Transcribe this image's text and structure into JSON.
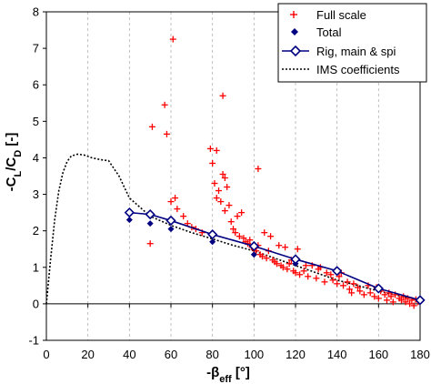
{
  "chart_data": {
    "type": "scatter",
    "xlabel": {
      "main": "-β",
      "sub": "eff",
      "unit": " [°]"
    },
    "ylabel": {
      "main": "-C",
      "sub1": "L",
      "mid": "/C",
      "sub2": "D",
      "unit": " [-]"
    },
    "xlim": [
      0,
      180
    ],
    "ylim": [
      -1,
      8
    ],
    "x_ticks": [
      0,
      20,
      40,
      60,
      80,
      100,
      120,
      140,
      160,
      180
    ],
    "y_ticks": [
      -1,
      0,
      1,
      2,
      3,
      4,
      5,
      6,
      7,
      8
    ],
    "grid": "vertical-dashed",
    "legend_position": "top-right",
    "colors": {
      "full_scale": "#ff0000",
      "total": "#000080",
      "rig": "#000080",
      "ims": "#000000"
    },
    "series": [
      {
        "name": "Full scale",
        "marker": "plus",
        "points": [
          [
            50,
            1.65
          ],
          [
            51,
            4.85
          ],
          [
            57,
            5.45
          ],
          [
            58,
            4.65
          ],
          [
            60,
            2.8
          ],
          [
            61,
            7.25
          ],
          [
            62,
            2.9
          ],
          [
            63,
            2.6
          ],
          [
            66,
            2.4
          ],
          [
            68,
            2.2
          ],
          [
            70,
            2.1
          ],
          [
            72,
            2.05
          ],
          [
            75,
            1.95
          ],
          [
            79,
            4.25
          ],
          [
            80,
            3.85
          ],
          [
            81,
            3.3
          ],
          [
            82,
            4.2
          ],
          [
            82,
            2.9
          ],
          [
            83,
            3.1
          ],
          [
            84,
            2.8
          ],
          [
            85,
            5.7
          ],
          [
            85,
            3.55
          ],
          [
            86,
            3.45
          ],
          [
            86,
            2.55
          ],
          [
            87,
            3.2
          ],
          [
            88,
            2.7
          ],
          [
            89,
            2.25
          ],
          [
            90,
            2.05
          ],
          [
            91,
            1.95
          ],
          [
            92,
            2.4
          ],
          [
            93,
            1.85
          ],
          [
            94,
            2.5
          ],
          [
            95,
            1.8
          ],
          [
            96,
            1.7
          ],
          [
            97,
            1.65
          ],
          [
            98,
            1.75
          ],
          [
            99,
            1.55
          ],
          [
            100,
            1.5
          ],
          [
            101,
            1.45
          ],
          [
            102,
            3.7
          ],
          [
            102,
            1.6
          ],
          [
            103,
            1.35
          ],
          [
            104,
            1.3
          ],
          [
            105,
            1.95
          ],
          [
            106,
            1.25
          ],
          [
            107,
            1.45
          ],
          [
            108,
            1.85
          ],
          [
            109,
            1.2
          ],
          [
            110,
            1.15
          ],
          [
            111,
            1.1
          ],
          [
            112,
            1.6
          ],
          [
            113,
            1.05
          ],
          [
            114,
            1.0
          ],
          [
            115,
            1.55
          ],
          [
            116,
            0.95
          ],
          [
            117,
            1.1
          ],
          [
            118,
            1.2
          ],
          [
            119,
            0.9
          ],
          [
            120,
            0.85
          ],
          [
            121,
            1.5
          ],
          [
            122,
            0.8
          ],
          [
            124,
            0.9
          ],
          [
            125,
            1.05
          ],
          [
            126,
            0.75
          ],
          [
            128,
            1.05
          ],
          [
            130,
            0.7
          ],
          [
            131,
            0.95
          ],
          [
            132,
            1.0
          ],
          [
            134,
            0.6
          ],
          [
            135,
            0.85
          ],
          [
            137,
            0.8
          ],
          [
            138,
            0.65
          ],
          [
            140,
            0.55
          ],
          [
            141,
            0.75
          ],
          [
            142,
            0.85
          ],
          [
            143,
            0.5
          ],
          [
            145,
            0.6
          ],
          [
            146,
            0.4
          ],
          [
            147,
            0.3
          ],
          [
            148,
            0.55
          ],
          [
            150,
            0.45
          ],
          [
            151,
            0.35
          ],
          [
            153,
            0.25
          ],
          [
            155,
            0.5
          ],
          [
            156,
            0.3
          ],
          [
            158,
            0.2
          ],
          [
            159,
            0.45
          ],
          [
            160,
            0.15
          ],
          [
            161,
            0.35
          ],
          [
            163,
            0.25
          ],
          [
            164,
            0.1
          ],
          [
            165,
            0.3
          ],
          [
            166,
            0.2
          ],
          [
            167,
            0.05
          ],
          [
            168,
            0.25
          ],
          [
            170,
            0.15
          ],
          [
            171,
            0.1
          ],
          [
            172,
            0.2
          ],
          [
            173,
            0.05
          ],
          [
            174,
            0.15
          ],
          [
            175,
            0.0
          ],
          [
            176,
            0.1
          ],
          [
            177,
            -0.05
          ],
          [
            178,
            0.12
          ],
          [
            179,
            0.05
          ],
          [
            180,
            0.08
          ]
        ]
      },
      {
        "name": "Total",
        "marker": "diamond-filled",
        "points": [
          [
            40,
            2.3
          ],
          [
            50,
            2.2
          ],
          [
            60,
            2.05
          ],
          [
            80,
            1.7
          ],
          [
            100,
            1.35
          ],
          [
            120,
            1.1
          ],
          [
            140,
            0.85
          ],
          [
            160,
            0.4
          ],
          [
            180,
            0.08
          ]
        ]
      },
      {
        "name": "Rig, main & spi",
        "marker": "diamond-open-line",
        "points": [
          [
            40,
            2.5
          ],
          [
            50,
            2.45
          ],
          [
            60,
            2.28
          ],
          [
            80,
            1.9
          ],
          [
            100,
            1.58
          ],
          [
            120,
            1.22
          ],
          [
            140,
            0.9
          ],
          [
            160,
            0.42
          ],
          [
            180,
            0.1
          ]
        ]
      },
      {
        "name": "IMS coefficients",
        "marker": "dotted-line",
        "points": [
          [
            0,
            0.0
          ],
          [
            2,
            1.2
          ],
          [
            4,
            2.3
          ],
          [
            6,
            3.1
          ],
          [
            8,
            3.6
          ],
          [
            10,
            3.9
          ],
          [
            12,
            4.05
          ],
          [
            15,
            4.1
          ],
          [
            18,
            4.08
          ],
          [
            22,
            4.0
          ],
          [
            26,
            3.95
          ],
          [
            30,
            3.92
          ],
          [
            35,
            3.5
          ],
          [
            40,
            2.9
          ],
          [
            50,
            2.4
          ],
          [
            60,
            2.15
          ],
          [
            70,
            1.95
          ],
          [
            80,
            1.78
          ],
          [
            90,
            1.6
          ],
          [
            100,
            1.45
          ],
          [
            110,
            1.25
          ],
          [
            120,
            1.05
          ],
          [
            130,
            0.85
          ],
          [
            140,
            0.65
          ],
          [
            150,
            0.5
          ],
          [
            160,
            0.35
          ],
          [
            170,
            0.22
          ],
          [
            180,
            0.1
          ]
        ]
      }
    ]
  }
}
